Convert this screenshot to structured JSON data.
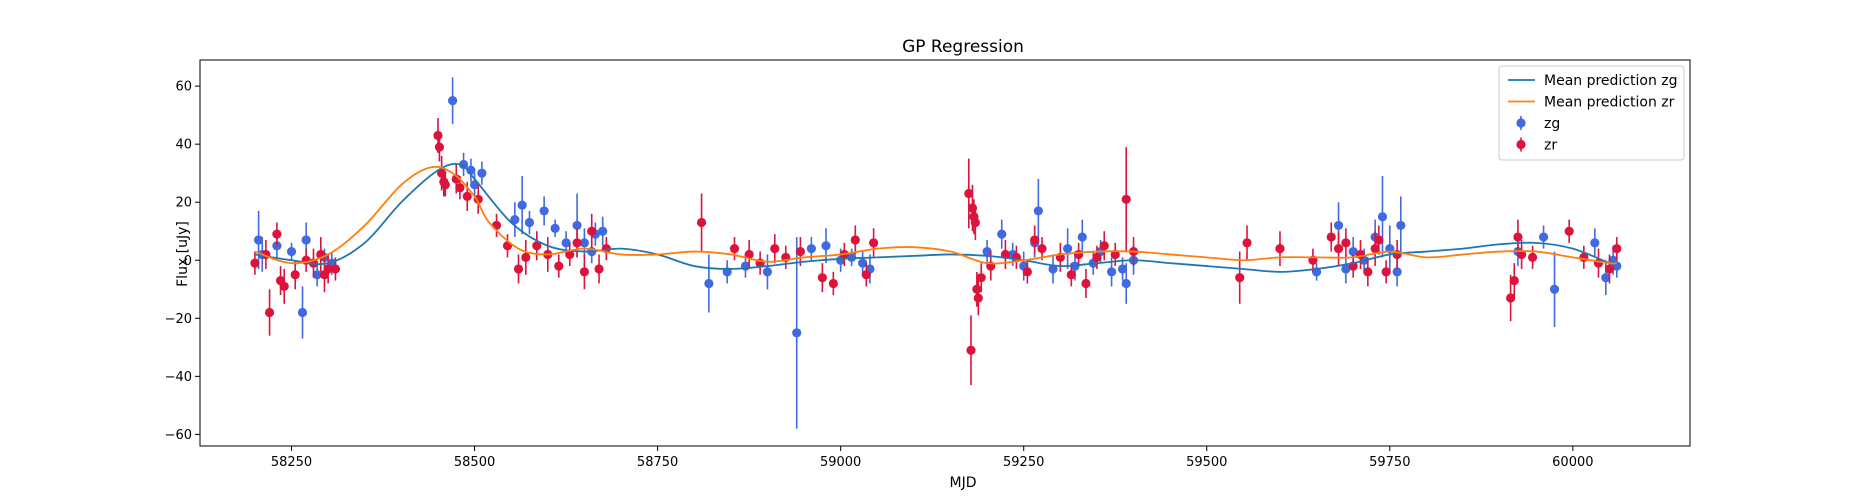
{
  "chart_data": {
    "type": "scatter",
    "title": "GP Regression",
    "xlabel": "MJD",
    "ylabel": "Flux [uJy]",
    "xlim": [
      58125,
      60160
    ],
    "ylim": [
      -64,
      69
    ],
    "xticks": [
      58250,
      58500,
      58750,
      59000,
      59250,
      59500,
      59750,
      60000
    ],
    "yticks": [
      -60,
      -40,
      -20,
      0,
      20,
      40,
      60
    ],
    "grid": false,
    "legend_position": "top-right",
    "colors": {
      "mean_zg": "#1f77b4",
      "mean_zr": "#ff7f0e",
      "zg": "#4169e1",
      "zr": "#dc143c"
    },
    "legend": [
      {
        "label": "Mean prediction zg",
        "kind": "line",
        "color": "#1f77b4"
      },
      {
        "label": "Mean prediction zr",
        "kind": "line",
        "color": "#ff7f0e"
      },
      {
        "label": "zg",
        "kind": "errorbar",
        "color": "#4169e1"
      },
      {
        "label": "zr",
        "kind": "errorbar",
        "color": "#dc143c"
      }
    ],
    "mean_lines": [
      {
        "name": "Mean prediction zg",
        "color": "#1f77b4",
        "x": [
          58200,
          58250,
          58300,
          58350,
          58400,
          58450,
          58480,
          58500,
          58550,
          58600,
          58650,
          58700,
          58750,
          58800,
          58850,
          58900,
          58950,
          59000,
          59050,
          59100,
          59150,
          59200,
          59250,
          59300,
          59350,
          59400,
          59450,
          59500,
          59550,
          59600,
          59650,
          59700,
          59750,
          59800,
          59850,
          59900,
          59950,
          60000,
          60050,
          60060
        ],
        "y": [
          2,
          0,
          -1,
          6,
          20,
          31,
          33,
          28,
          13,
          5,
          3,
          4,
          2,
          -2,
          -3,
          -2,
          -0.5,
          0.5,
          1,
          1.5,
          2,
          1.5,
          0,
          -2,
          -1,
          0,
          -1,
          -2,
          -3,
          -4,
          -3,
          -1,
          2,
          3,
          4,
          5.5,
          6,
          4,
          -1,
          -2
        ]
      },
      {
        "name": "Mean prediction zr",
        "color": "#ff7f0e",
        "x": [
          58200,
          58250,
          58300,
          58350,
          58400,
          58440,
          58470,
          58500,
          58520,
          58560,
          58600,
          58650,
          58700,
          58750,
          58800,
          58850,
          58900,
          58950,
          59000,
          59050,
          59100,
          59150,
          59200,
          59250,
          59300,
          59350,
          59400,
          59450,
          59500,
          59550,
          59600,
          59650,
          59700,
          59750,
          59800,
          59850,
          59900,
          59950,
          60000,
          60050,
          60060
        ],
        "y": [
          3,
          -1,
          2,
          12,
          26,
          32,
          30,
          22,
          13,
          4,
          2,
          4,
          2,
          2,
          3,
          2,
          -0.5,
          1,
          2,
          4,
          4.5,
          3,
          -1,
          0,
          2,
          3,
          3,
          2,
          1,
          0,
          1,
          1,
          1,
          3,
          1,
          2,
          3,
          3,
          1,
          -1,
          -1
        ]
      }
    ],
    "series": [
      {
        "name": "zg",
        "color": "#4169e1",
        "points": [
          [
            58205,
            7,
            10
          ],
          [
            58210,
            2,
            6
          ],
          [
            58230,
            5,
            4
          ],
          [
            58250,
            3,
            3
          ],
          [
            58265,
            -18,
            9
          ],
          [
            58270,
            7,
            6
          ],
          [
            58285,
            -5,
            4
          ],
          [
            58295,
            1,
            3
          ],
          [
            58305,
            -1,
            4
          ],
          [
            58470,
            55,
            8
          ],
          [
            58485,
            33,
            4
          ],
          [
            58495,
            31,
            4
          ],
          [
            58500,
            26,
            4
          ],
          [
            58510,
            30,
            4
          ],
          [
            58555,
            14,
            6
          ],
          [
            58565,
            19,
            10
          ],
          [
            58575,
            13,
            4
          ],
          [
            58595,
            17,
            5
          ],
          [
            58610,
            11,
            3
          ],
          [
            58625,
            6,
            4
          ],
          [
            58640,
            12,
            11
          ],
          [
            58650,
            6,
            5
          ],
          [
            58660,
            3,
            4
          ],
          [
            58665,
            9,
            4
          ],
          [
            58675,
            10,
            5
          ],
          [
            58820,
            -8,
            10
          ],
          [
            58845,
            -4,
            4
          ],
          [
            58870,
            -2,
            4
          ],
          [
            58900,
            -4,
            6
          ],
          [
            58940,
            -25,
            33
          ],
          [
            58960,
            4,
            4
          ],
          [
            58980,
            5,
            6
          ],
          [
            59000,
            0,
            4
          ],
          [
            59015,
            1,
            3
          ],
          [
            59030,
            -1,
            4
          ],
          [
            59040,
            -3,
            5
          ],
          [
            59200,
            3,
            4
          ],
          [
            59220,
            9,
            5
          ],
          [
            59235,
            2,
            4
          ],
          [
            59250,
            -2,
            5
          ],
          [
            59265,
            6,
            5
          ],
          [
            59270,
            17,
            11
          ],
          [
            59290,
            -3,
            5
          ],
          [
            59310,
            4,
            7
          ],
          [
            59320,
            -2,
            5
          ],
          [
            59330,
            8,
            6
          ],
          [
            59345,
            -1,
            4
          ],
          [
            59355,
            3,
            4
          ],
          [
            59370,
            -4,
            5
          ],
          [
            59385,
            -3,
            4
          ],
          [
            59390,
            -8,
            7
          ],
          [
            59400,
            0,
            5
          ],
          [
            59650,
            -4,
            3
          ],
          [
            59680,
            12,
            8
          ],
          [
            59690,
            -3,
            5
          ],
          [
            59700,
            3,
            5
          ],
          [
            59715,
            0,
            4
          ],
          [
            59730,
            8,
            6
          ],
          [
            59740,
            15,
            14
          ],
          [
            59750,
            4,
            8
          ],
          [
            59760,
            -4,
            5
          ],
          [
            59765,
            12,
            10
          ],
          [
            59925,
            3,
            5
          ],
          [
            59960,
            8,
            4
          ],
          [
            59975,
            -10,
            13
          ],
          [
            60030,
            6,
            5
          ],
          [
            60045,
            -6,
            6
          ],
          [
            60055,
            0,
            5
          ],
          [
            60060,
            -2,
            4
          ]
        ]
      },
      {
        "name": "zr",
        "color": "#dc143c",
        "points": [
          [
            58200,
            -1,
            4
          ],
          [
            58215,
            2,
            5
          ],
          [
            58220,
            -18,
            8
          ],
          [
            58230,
            9,
            4
          ],
          [
            58235,
            -7,
            5
          ],
          [
            58240,
            -9,
            6
          ],
          [
            58255,
            -5,
            5
          ],
          [
            58270,
            0,
            4
          ],
          [
            58280,
            -1,
            5
          ],
          [
            58290,
            2,
            6
          ],
          [
            58295,
            -5,
            6
          ],
          [
            58300,
            -3,
            5
          ],
          [
            58310,
            -3,
            4
          ],
          [
            58450,
            43,
            6
          ],
          [
            58452,
            39,
            5
          ],
          [
            58455,
            30,
            6
          ],
          [
            58458,
            27,
            5
          ],
          [
            58460,
            26,
            4
          ],
          [
            58475,
            28,
            5
          ],
          [
            58480,
            25,
            4
          ],
          [
            58490,
            22,
            5
          ],
          [
            58505,
            21,
            5
          ],
          [
            58530,
            12,
            4
          ],
          [
            58545,
            5,
            4
          ],
          [
            58560,
            -3,
            5
          ],
          [
            58570,
            1,
            6
          ],
          [
            58585,
            5,
            5
          ],
          [
            58600,
            2,
            6
          ],
          [
            58615,
            -2,
            4
          ],
          [
            58630,
            2,
            4
          ],
          [
            58640,
            6,
            5
          ],
          [
            58650,
            -4,
            6
          ],
          [
            58660,
            10,
            6
          ],
          [
            58670,
            -3,
            5
          ],
          [
            58680,
            4,
            4
          ],
          [
            58810,
            13,
            10
          ],
          [
            58855,
            4,
            4
          ],
          [
            58875,
            2,
            5
          ],
          [
            58890,
            -1,
            4
          ],
          [
            58910,
            4,
            5
          ],
          [
            58925,
            1,
            4
          ],
          [
            58945,
            3,
            5
          ],
          [
            58975,
            -6,
            5
          ],
          [
            58990,
            -8,
            4
          ],
          [
            59005,
            2,
            4
          ],
          [
            59020,
            7,
            5
          ],
          [
            59035,
            -5,
            4
          ],
          [
            59045,
            6,
            5
          ],
          [
            59175,
            23,
            12
          ],
          [
            59178,
            -31,
            12
          ],
          [
            59180,
            18,
            8
          ],
          [
            59182,
            15,
            6
          ],
          [
            59184,
            13,
            6
          ],
          [
            59186,
            -10,
            6
          ],
          [
            59188,
            -13,
            6
          ],
          [
            59192,
            -6,
            5
          ],
          [
            59205,
            -2,
            5
          ],
          [
            59225,
            2,
            5
          ],
          [
            59240,
            1,
            4
          ],
          [
            59255,
            -4,
            4
          ],
          [
            59265,
            7,
            5
          ],
          [
            59275,
            4,
            4
          ],
          [
            59300,
            1,
            5
          ],
          [
            59315,
            -5,
            4
          ],
          [
            59325,
            2,
            4
          ],
          [
            59335,
            -8,
            5
          ],
          [
            59350,
            1,
            4
          ],
          [
            59360,
            5,
            5
          ],
          [
            59375,
            2,
            4
          ],
          [
            59390,
            21,
            18
          ],
          [
            59400,
            3,
            5
          ],
          [
            59545,
            -6,
            9
          ],
          [
            59555,
            6,
            6
          ],
          [
            59600,
            4,
            6
          ],
          [
            59645,
            0,
            4
          ],
          [
            59670,
            8,
            5
          ],
          [
            59680,
            4,
            6
          ],
          [
            59690,
            6,
            5
          ],
          [
            59700,
            -2,
            4
          ],
          [
            59710,
            2,
            5
          ],
          [
            59720,
            -4,
            5
          ],
          [
            59730,
            4,
            6
          ],
          [
            59735,
            7,
            5
          ],
          [
            59745,
            -4,
            4
          ],
          [
            59760,
            2,
            5
          ],
          [
            59915,
            -13,
            8
          ],
          [
            59920,
            -7,
            6
          ],
          [
            59925,
            8,
            6
          ],
          [
            59930,
            2,
            5
          ],
          [
            59945,
            1,
            4
          ],
          [
            59995,
            10,
            4
          ],
          [
            60015,
            1,
            4
          ],
          [
            60035,
            -1,
            5
          ],
          [
            60050,
            -3,
            5
          ],
          [
            60060,
            4,
            4
          ]
        ]
      }
    ]
  }
}
